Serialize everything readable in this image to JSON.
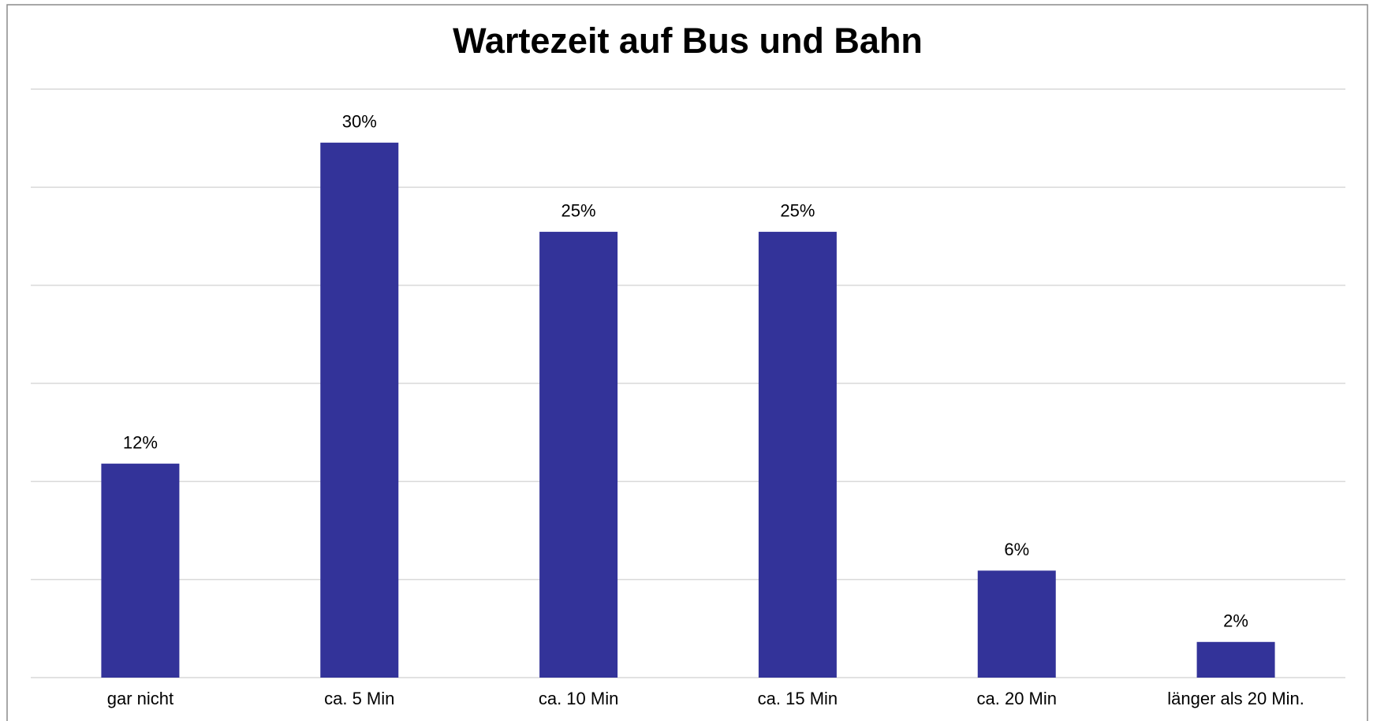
{
  "chart_data": {
    "type": "bar",
    "title": "Wartezeit auf Bus und Bahn",
    "categories": [
      "gar nicht",
      "ca. 5 Min",
      "ca. 10 Min",
      "ca. 15 Min",
      "ca. 20 Min",
      "länger als 20 Min."
    ],
    "values": [
      12,
      30,
      25,
      25,
      6,
      2
    ],
    "value_labels": [
      "12%",
      "30%",
      "25%",
      "25%",
      "6%",
      "2%"
    ],
    "color": "#333399",
    "ylim": [
      0,
      33
    ],
    "yticks": [
      0,
      5.5,
      11,
      16.5,
      22,
      27.5,
      33
    ],
    "grid": true
  }
}
